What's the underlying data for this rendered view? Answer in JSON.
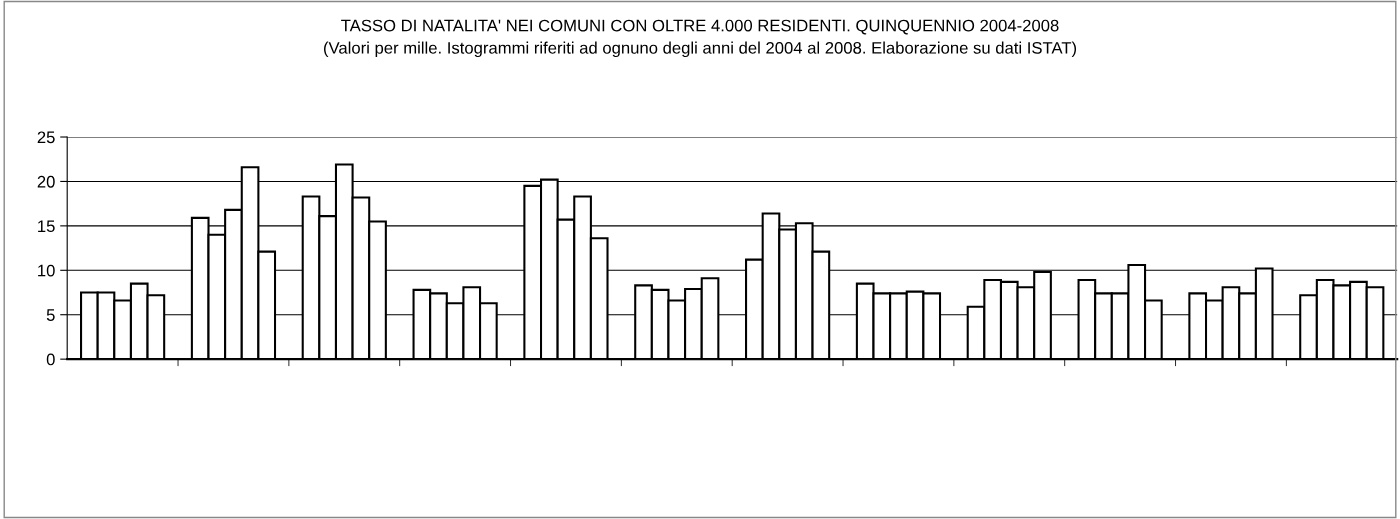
{
  "chart_data": {
    "type": "bar",
    "title": "TASSO DI NATALITA' NEI COMUNI CON OLTRE 4.000 RESIDENTI. QUINQUENNIO 2004-2008",
    "subtitle": "(Valori per mille. Istogrammi riferiti ad ognuno degli anni del 2004 al 2008. Elaborazione su dati ISTAT)",
    "categories": [
      null,
      null,
      null,
      null,
      null,
      null,
      null,
      null,
      null,
      null,
      null,
      null
    ],
    "series": [
      {
        "color": "#ffffff",
        "values": [
          7.5,
          15.9,
          18.3,
          7.8,
          19.5,
          8.3,
          11.2,
          8.5,
          5.9,
          8.9,
          7.4,
          7.2
        ]
      },
      {
        "color": "#ffffff",
        "values": [
          7.5,
          14.0,
          16.1,
          7.4,
          20.2,
          7.8,
          16.4,
          7.4,
          8.9,
          7.4,
          6.6,
          8.9
        ]
      },
      {
        "color": "#ffffff",
        "values": [
          6.6,
          16.8,
          21.9,
          6.3,
          15.7,
          6.6,
          14.6,
          7.4,
          8.7,
          7.4,
          8.1,
          8.3
        ]
      },
      {
        "color": "#ffffff",
        "values": [
          8.5,
          21.6,
          18.2,
          8.1,
          18.3,
          7.9,
          15.3,
          7.6,
          8.1,
          10.6,
          7.4,
          8.7
        ]
      },
      {
        "color": "#ffffff",
        "values": [
          7.2,
          12.1,
          15.5,
          6.3,
          13.6,
          9.1,
          12.1,
          7.4,
          9.8,
          6.6,
          10.2,
          8.1
        ]
      }
    ],
    "ylim": [
      0,
      25
    ],
    "yticks": [
      0,
      5,
      10,
      15,
      20,
      25
    ],
    "grid": "y",
    "legend": false
  }
}
